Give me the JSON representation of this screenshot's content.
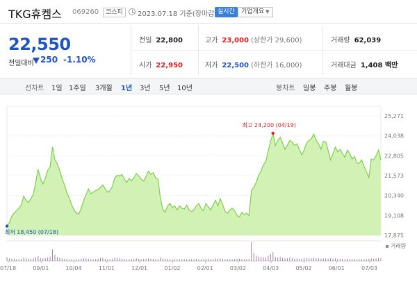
{
  "header": {
    "stock_name": "TKG휴켐스",
    "stock_code": "069260",
    "market": "코스피",
    "date_text": "2023.07.18  기준(장마감)",
    "realtime_label": "실시간",
    "corp_info_label": "기업개요",
    "icons": {
      "clock": "clock-icon",
      "dropdown": "chevron-down-icon"
    }
  },
  "quote": {
    "price": "22,550",
    "change_label": "전일대비",
    "change_value": "250",
    "change_rate": "-1.10%",
    "direction": "down",
    "color_down": "#1f54c5",
    "color_up": "#e02020"
  },
  "stats": [
    {
      "label": "전일",
      "value": "22,800",
      "tone": "normal"
    },
    {
      "label": "고가",
      "value": "23,000",
      "tone": "red",
      "sub": "(상한가 29,600)"
    },
    {
      "label": "거래량",
      "value": "62,039",
      "tone": "normal"
    },
    {
      "label": "시가",
      "value": "22,950",
      "tone": "red"
    },
    {
      "label": "저가",
      "value": "22,500",
      "tone": "blue",
      "sub": "(하한가 16,000)"
    },
    {
      "label": "거래대금",
      "value": "1,408 백만",
      "tone": "normal"
    }
  ],
  "period_bar": {
    "line_label": "선차트",
    "line_periods": [
      "1일",
      "1주일",
      "3개월",
      "1년",
      "3년",
      "5년",
      "10년"
    ],
    "selected_period": "1년",
    "candle_label": "봉차트",
    "candle_periods": [
      "일봉",
      "주봉",
      "월봉"
    ]
  },
  "chart_data": {
    "type": "area",
    "series": [
      {
        "values": [
          18450,
          18650,
          19050,
          19250,
          19400,
          19550,
          19750,
          20300,
          20050,
          19900,
          20150,
          20400,
          21150,
          21950,
          21400,
          21050,
          21400,
          21900,
          22100,
          23350,
          22550,
          22300,
          21900,
          21400,
          21000,
          20500,
          20200,
          19750,
          19450,
          19250,
          19200,
          19550,
          20050,
          20400,
          20750,
          20450,
          20550,
          20650,
          20700,
          20850,
          21000,
          20750,
          20550,
          20650,
          20900,
          21450,
          21600,
          21550,
          21650,
          21350,
          21150,
          21400,
          21250,
          21450,
          21700,
          21550,
          21350,
          21250,
          21500,
          21850,
          21650,
          21750,
          21450,
          21350,
          20200,
          19500,
          19300,
          19700,
          19850,
          19600,
          19700,
          19450,
          19700,
          19550,
          19500,
          19750,
          19450,
          19350,
          19450,
          19700,
          19850,
          19550,
          19400,
          19850,
          19650,
          19450,
          19750,
          20050,
          19700,
          20150,
          19800,
          19350,
          19250,
          19450,
          19550,
          19400,
          19100,
          19000,
          19300,
          19150,
          19250,
          19100,
          20650,
          20850,
          21150,
          21600,
          21850,
          22250,
          22450,
          23100,
          23700,
          24200,
          23450,
          23750,
          23950,
          23600,
          23200,
          23450,
          23750,
          23650,
          23450,
          23550,
          23200,
          22850,
          23150,
          23600,
          23750,
          23850,
          24150,
          23750,
          23550,
          23200,
          23700,
          23650,
          23150,
          22550,
          22900,
          23350,
          23050,
          23200,
          22950,
          22700,
          23150,
          22950,
          22600,
          22750,
          22350,
          22350,
          22550,
          22150,
          21800,
          21450,
          22600,
          22550,
          22800,
          23150,
          22550
        ]
      }
    ],
    "x_labels": [
      "07/18",
      "09/01",
      "10/04",
      "11/01",
      "12/01",
      "01/02",
      "02/01",
      "03/02",
      "04/03",
      "05/02",
      "06/01",
      "07/03"
    ],
    "y_ticks": [
      17875,
      19108,
      20340,
      21573,
      22805,
      24038,
      25271
    ],
    "y_tick_labels": [
      "17,875",
      "19,108",
      "20,340",
      "21,573",
      "22,805",
      "24,038",
      "25,271"
    ],
    "ylim": [
      17875,
      25271
    ],
    "high_label": "최고 24,200 (04/19)",
    "low_label": "최저 18,450 (07/18)",
    "volume_label": "거래량",
    "volume_values": [
      9,
      6,
      5,
      5,
      4,
      4,
      5,
      8,
      6,
      5,
      5,
      6,
      9,
      11,
      7,
      6,
      7,
      8,
      10,
      26,
      14,
      9,
      7,
      6,
      5,
      5,
      4,
      4,
      4,
      4,
      4,
      5,
      6,
      6,
      5,
      4,
      4,
      4,
      5,
      7,
      7,
      5,
      4,
      4,
      5,
      8,
      7,
      6,
      5,
      5,
      4,
      4,
      4,
      5,
      6,
      5,
      4,
      4,
      5,
      6,
      5,
      5,
      4,
      4,
      8,
      6,
      5,
      5,
      4,
      4,
      4,
      4,
      4,
      4,
      4,
      4,
      4,
      4,
      4,
      5,
      4,
      4,
      4,
      5,
      5,
      4,
      4,
      6,
      5,
      6,
      5,
      4,
      4,
      4,
      4,
      4,
      5,
      5,
      4,
      4,
      4,
      5,
      42,
      18,
      12,
      10,
      9,
      8,
      8,
      12,
      16,
      20,
      9,
      8,
      9,
      7,
      6,
      6,
      8,
      6,
      5,
      6,
      5,
      5,
      6,
      7,
      7,
      6,
      8,
      6,
      6,
      5,
      6,
      6,
      5,
      6,
      5,
      6,
      5,
      5,
      5,
      4,
      5,
      4,
      4,
      5,
      4,
      4,
      4,
      4,
      4,
      5,
      6,
      5,
      6,
      7,
      6
    ],
    "area_fill": "#d2f2b5",
    "line_color": "#7ad14a",
    "volume_color": "#a07fb0"
  }
}
